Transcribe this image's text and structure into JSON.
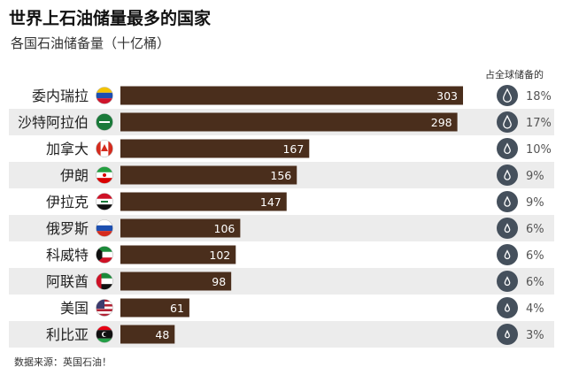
{
  "title": "世界上石油储量最多的国家",
  "subtitle": "各国石油储备量（十亿桶）",
  "share_header": "占全球储备的",
  "source": "数据来源：英国石油！",
  "colors": {
    "bar": "#4a2e1c",
    "stripe": "#ececec",
    "drop_circle": "#45505c"
  },
  "chart_data": {
    "type": "bar",
    "orientation": "horizontal",
    "title": "世界上石油储量最多的国家",
    "subtitle": "各国石油储备量（十亿桶）",
    "categories": [
      "委内瑞拉",
      "沙特阿拉伯",
      "加拿大",
      "伊朗",
      "伊拉克",
      "俄罗斯",
      "科威特",
      "阿联酋",
      "美国",
      "利比亚"
    ],
    "values": [
      303,
      298,
      167,
      156,
      147,
      106,
      102,
      98,
      61,
      48
    ],
    "share_of_global": [
      "18%",
      "17%",
      "10%",
      "9%",
      "9%",
      "6%",
      "6%",
      "6%",
      "4%",
      "3%"
    ],
    "flags": [
      "venezuela-flag-icon",
      "saudi-arabia-flag-icon",
      "canada-flag-icon",
      "iran-flag-icon",
      "iraq-flag-icon",
      "russia-flag-icon",
      "kuwait-flag-icon",
      "uae-flag-icon",
      "usa-flag-icon",
      "libya-flag-icon"
    ],
    "xlim": [
      0,
      303
    ],
    "grid": false,
    "legend": "none"
  }
}
